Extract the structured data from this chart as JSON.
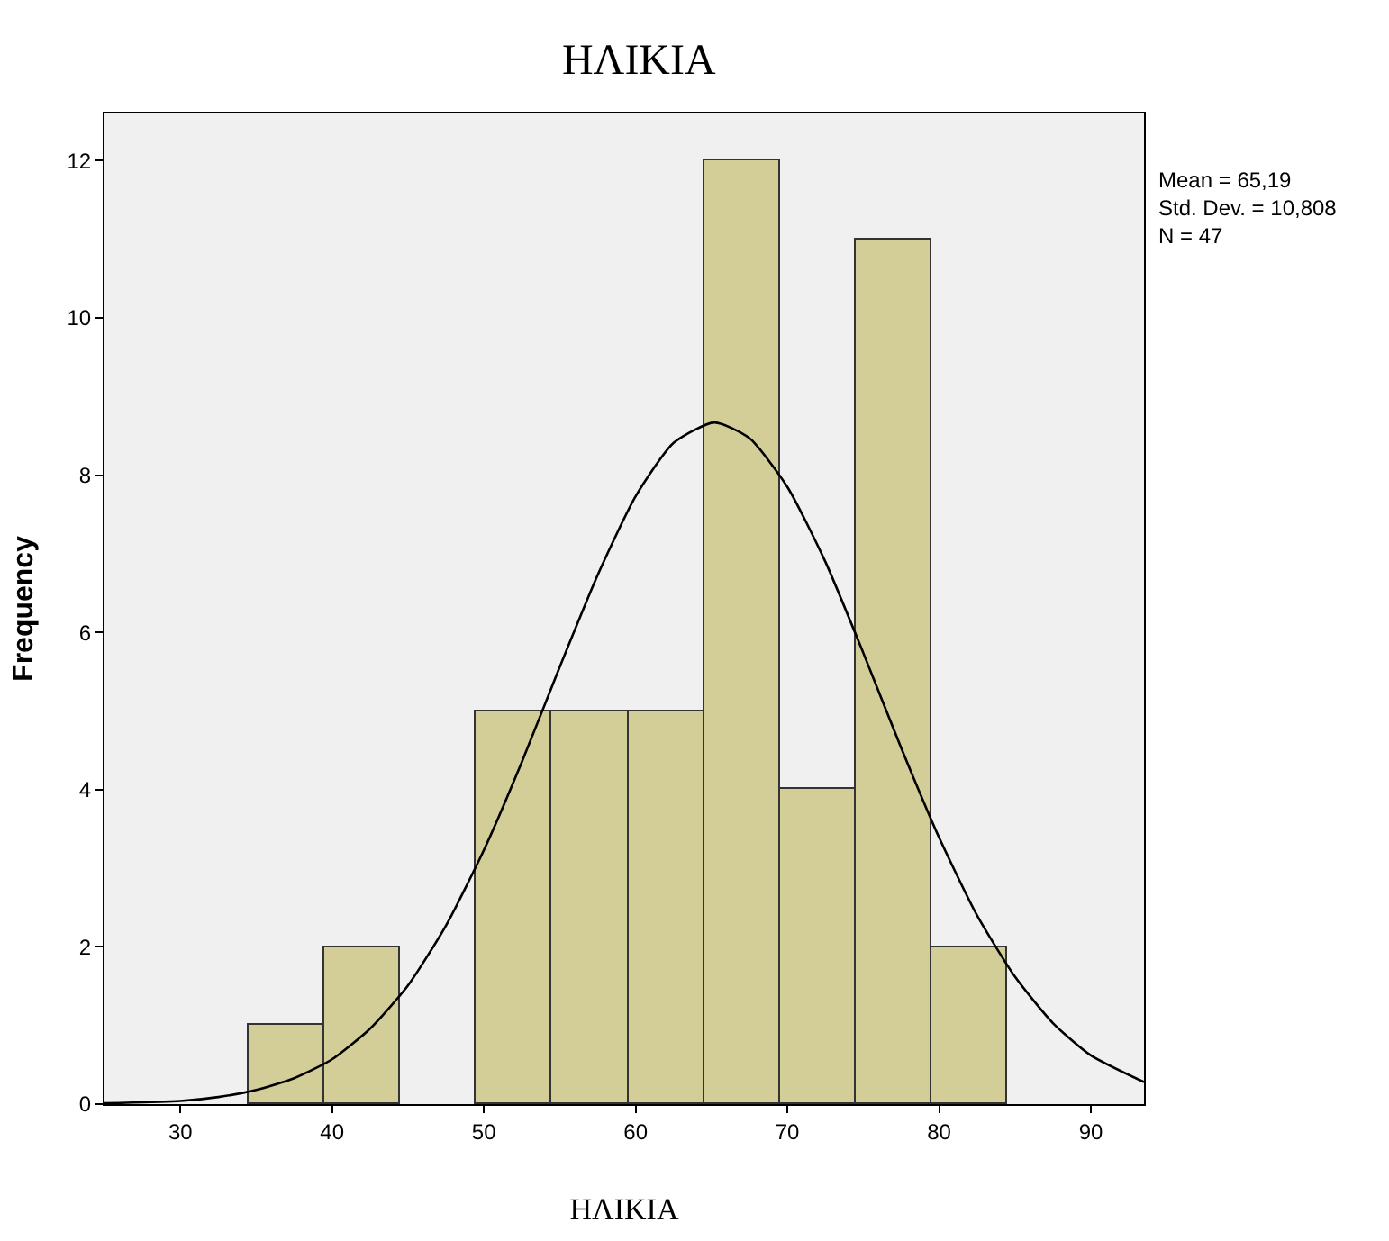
{
  "chart_data": {
    "type": "histogram",
    "title": "ΗΛΙΚΙΑ",
    "xlabel": "ΗΛΙΚΙΑ",
    "ylabel": "Frequency",
    "bins": [
      34.5,
      39.5,
      44.5,
      49.5,
      54.5,
      59.5,
      64.5,
      69.5,
      74.5,
      79.5,
      84.5
    ],
    "values": [
      1,
      2,
      0,
      5,
      5,
      5,
      12,
      4,
      11,
      2
    ],
    "color": "#d3ce97",
    "series": [
      {
        "type": "line",
        "color": "#000000",
        "x": [
          25,
          30,
          32.5,
          35,
          37.5,
          40,
          42.5,
          45,
          47.5,
          50,
          52.5,
          55,
          57.5,
          60,
          62.5,
          65.19,
          67.5,
          70,
          72.5,
          75,
          77.5,
          80,
          82.5,
          85,
          87.5,
          90,
          93.5
        ],
        "values": [
          0.01,
          0.04,
          0.09,
          0.18,
          0.33,
          0.57,
          0.96,
          1.51,
          2.27,
          3.23,
          4.35,
          5.56,
          6.73,
          7.73,
          8.41,
          8.67,
          8.47,
          7.85,
          6.9,
          5.74,
          4.53,
          3.39,
          2.4,
          1.62,
          1.03,
          0.62,
          0.28
        ]
      }
    ],
    "xlim": [
      25,
      93.5
    ],
    "xticks": [
      30,
      40,
      50,
      60,
      70,
      80,
      90
    ],
    "ylim": [
      0,
      12.6
    ],
    "yticks": [
      0,
      2,
      4,
      6,
      8,
      10,
      12
    ],
    "annotations": [
      "Mean = 65,19\nStd. Dev. = 10,808\nN = 47"
    ]
  }
}
